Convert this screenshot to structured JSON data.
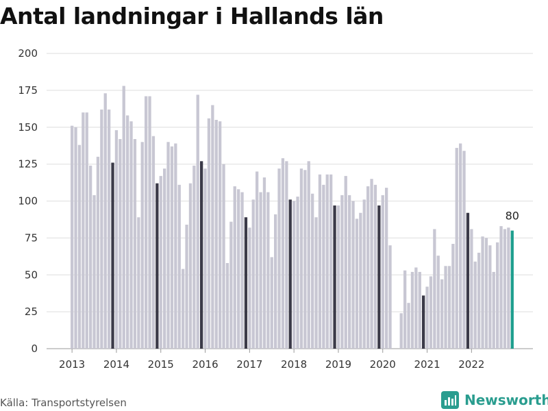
{
  "chart_data": {
    "type": "bar",
    "title": "Antal landningar i Hallands län",
    "xlabel": "",
    "ylabel": "",
    "ylim": [
      0,
      200
    ],
    "yticks": [
      0,
      25,
      50,
      75,
      100,
      125,
      150,
      175,
      200
    ],
    "xtick_labels": [
      "2013",
      "2014",
      "2015",
      "2016",
      "2017",
      "2018",
      "2019",
      "2020",
      "2021",
      "2022"
    ],
    "grid": true,
    "colors": {
      "bar": "#c8c7d3",
      "highlight": "#3b3a48",
      "latest": "#1e9e8e",
      "grid": "#dedede"
    },
    "start": "2013-01",
    "values": [
      151,
      150,
      138,
      160,
      160,
      124,
      104,
      130,
      162,
      173,
      162,
      126,
      148,
      142,
      178,
      158,
      154,
      142,
      89,
      140,
      171,
      171,
      144,
      112,
      117,
      122,
      140,
      137,
      139,
      111,
      54,
      84,
      112,
      124,
      172,
      127,
      122,
      156,
      165,
      155,
      154,
      125,
      58,
      86,
      110,
      108,
      106,
      89,
      82,
      101,
      120,
      106,
      116,
      106,
      62,
      91,
      122,
      129,
      127,
      101,
      100,
      103,
      122,
      121,
      127,
      105,
      89,
      118,
      111,
      118,
      118,
      97,
      97,
      104,
      117,
      104,
      100,
      88,
      92,
      101,
      110,
      115,
      111,
      97,
      104,
      109,
      70,
      0,
      0,
      24,
      53,
      31,
      52,
      55,
      52,
      36,
      42,
      49,
      81,
      63,
      47,
      56,
      56,
      71,
      136,
      139,
      134,
      92,
      81,
      59,
      65,
      76,
      75,
      70,
      52,
      72,
      83,
      81,
      82,
      80
    ],
    "highlight_note": "December bars in dark color; last bar highlighted",
    "last_value_label": "80"
  },
  "source": "Källa: Transportstyrelsen",
  "brand": "Newsworthy"
}
